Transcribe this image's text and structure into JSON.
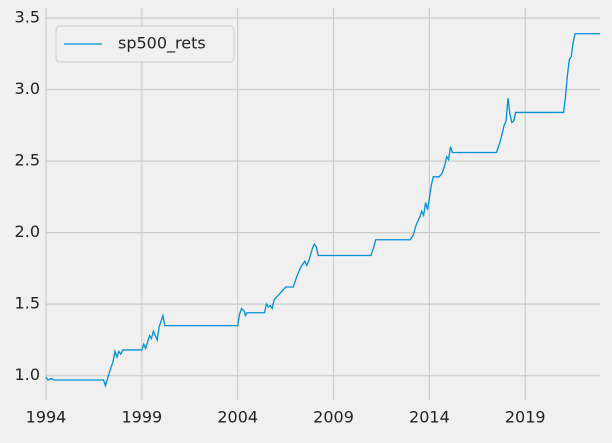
{
  "chart_data": {
    "type": "line",
    "x": [
      1994.0,
      1994.1,
      1994.3,
      1994.4,
      1997.0,
      1997.1,
      1997.3,
      1997.5,
      1997.6,
      1997.7,
      1997.8,
      1997.9,
      1998.0,
      1999.0,
      1999.1,
      1999.2,
      1999.4,
      1999.5,
      1999.6,
      1999.8,
      1999.9,
      2000.1,
      2000.2,
      2004.0,
      2004.1,
      2004.2,
      2004.35,
      2004.4,
      2004.5,
      2005.4,
      2005.5,
      2005.6,
      2005.7,
      2005.8,
      2005.9,
      2006.1,
      2006.3,
      2006.5,
      2006.9,
      2007.1,
      2007.3,
      2007.5,
      2007.6,
      2007.7,
      2007.9,
      2008.0,
      2008.1,
      2008.2,
      2010.95,
      2011.1,
      2011.2,
      2013.0,
      2013.15,
      2013.3,
      2013.5,
      2013.6,
      2013.7,
      2013.8,
      2013.9,
      2014.0,
      2014.1,
      2014.2,
      2014.5,
      2014.65,
      2014.8,
      2014.9,
      2015.0,
      2015.1,
      2015.2,
      2017.5,
      2017.7,
      2017.9,
      2018.0,
      2018.1,
      2018.2,
      2018.3,
      2018.4,
      2018.5,
      2021.0,
      2021.1,
      2021.2,
      2021.3,
      2021.4,
      2021.5,
      2021.6,
      2022.9
    ],
    "series": [
      {
        "name": "sp500_rets",
        "color": "#008fd5",
        "values": [
          0.99,
          0.97,
          0.98,
          0.97,
          0.97,
          0.93,
          1.02,
          1.1,
          1.17,
          1.13,
          1.17,
          1.15,
          1.18,
          1.18,
          1.22,
          1.19,
          1.28,
          1.26,
          1.31,
          1.25,
          1.34,
          1.42,
          1.35,
          1.35,
          1.43,
          1.47,
          1.45,
          1.42,
          1.44,
          1.44,
          1.5,
          1.48,
          1.49,
          1.47,
          1.53,
          1.56,
          1.59,
          1.62,
          1.62,
          1.7,
          1.76,
          1.8,
          1.77,
          1.8,
          1.89,
          1.92,
          1.9,
          1.84,
          1.84,
          1.9,
          1.95,
          1.95,
          1.98,
          2.05,
          2.11,
          2.15,
          2.12,
          2.21,
          2.16,
          2.24,
          2.33,
          2.39,
          2.39,
          2.41,
          2.47,
          2.53,
          2.51,
          2.6,
          2.56,
          2.56,
          2.64,
          2.75,
          2.78,
          2.94,
          2.83,
          2.77,
          2.78,
          2.84,
          2.84,
          2.95,
          3.1,
          3.21,
          3.23,
          3.33,
          3.39,
          3.39
        ]
      }
    ],
    "xlim": [
      1994,
      2022.9
    ],
    "xticks": [
      1994,
      1999,
      2004,
      2009,
      2014,
      2019
    ],
    "ylim": [
      0.83,
      3.57
    ],
    "yticks": [
      {
        "value": 1.0,
        "label": "1.0"
      },
      1.5,
      {
        "value": 2.0,
        "label": "2.0"
      },
      2.5,
      {
        "value": 3.0,
        "label": "3.0"
      },
      3.5
    ],
    "grid": true,
    "legend": "upper-left"
  }
}
